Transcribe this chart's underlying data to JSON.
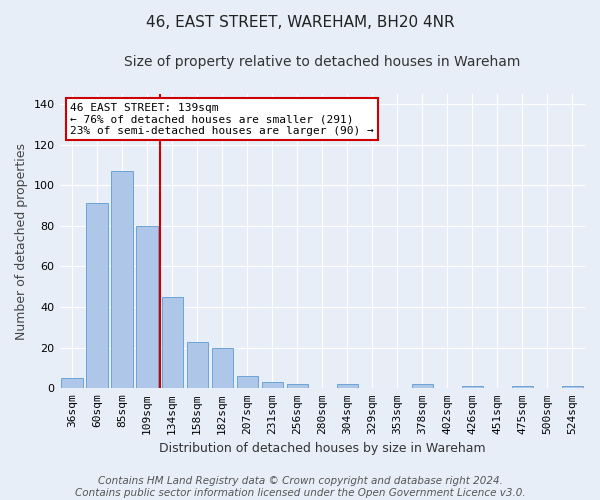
{
  "title": "46, EAST STREET, WAREHAM, BH20 4NR",
  "subtitle": "Size of property relative to detached houses in Wareham",
  "xlabel": "Distribution of detached houses by size in Wareham",
  "ylabel": "Number of detached properties",
  "categories": [
    "36sqm",
    "60sqm",
    "85sqm",
    "109sqm",
    "134sqm",
    "158sqm",
    "182sqm",
    "207sqm",
    "231sqm",
    "256sqm",
    "280sqm",
    "304sqm",
    "329sqm",
    "353sqm",
    "378sqm",
    "402sqm",
    "426sqm",
    "451sqm",
    "475sqm",
    "500sqm",
    "524sqm"
  ],
  "values": [
    5,
    91,
    107,
    80,
    45,
    23,
    20,
    6,
    3,
    2,
    0,
    2,
    0,
    0,
    2,
    0,
    1,
    0,
    1,
    0,
    1
  ],
  "bar_color": "#aec6e8",
  "bar_edgecolor": "#5b9bd5",
  "bg_color": "#e8eef8",
  "grid_color": "#ffffff",
  "red_line_x": 3.5,
  "red_line_color": "#cc0000",
  "annotation_line1": "46 EAST STREET: 139sqm",
  "annotation_line2": "← 76% of detached houses are smaller (291)",
  "annotation_line3": "23% of semi-detached houses are larger (90) →",
  "annotation_box_color": "#ffffff",
  "annotation_box_edgecolor": "#cc0000",
  "ylim": [
    0,
    145
  ],
  "yticks": [
    0,
    20,
    40,
    60,
    80,
    100,
    120,
    140
  ],
  "footnote": "Contains HM Land Registry data © Crown copyright and database right 2024.\nContains public sector information licensed under the Open Government Licence v3.0.",
  "title_fontsize": 11,
  "subtitle_fontsize": 10,
  "xlabel_fontsize": 9,
  "ylabel_fontsize": 9,
  "annotation_fontsize": 8,
  "tick_fontsize": 8,
  "footnote_fontsize": 7.5
}
